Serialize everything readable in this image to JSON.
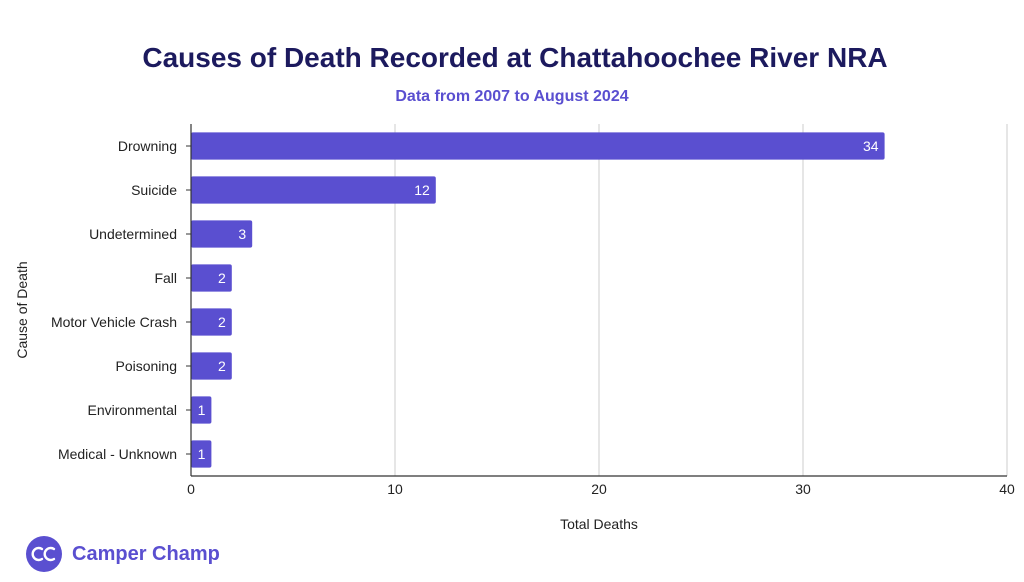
{
  "chart_data": {
    "type": "bar",
    "orientation": "horizontal",
    "title": "Causes of Death Recorded at Chattahoochee River NRA",
    "subtitle": "Data from 2007 to August 2024",
    "xlabel": "Total Deaths",
    "ylabel": "Cause of Death",
    "categories": [
      "Drowning",
      "Suicide",
      "Undetermined",
      "Fall",
      "Motor Vehicle Crash",
      "Poisoning",
      "Environmental",
      "Medical - Unknown"
    ],
    "values": [
      34,
      12,
      3,
      2,
      2,
      2,
      1,
      1
    ],
    "xlim": [
      0,
      40
    ],
    "xticks": [
      0,
      10,
      20,
      30,
      40
    ],
    "grid": "vertical",
    "bar_color": "#5a4fd0",
    "data_labels": true
  },
  "brand": {
    "name": "Camper Champ",
    "logo_icon": "cc-badge-icon",
    "color": "#5a4fd0"
  },
  "colors": {
    "title": "#1c1a5e",
    "accent": "#5a4fd0"
  }
}
